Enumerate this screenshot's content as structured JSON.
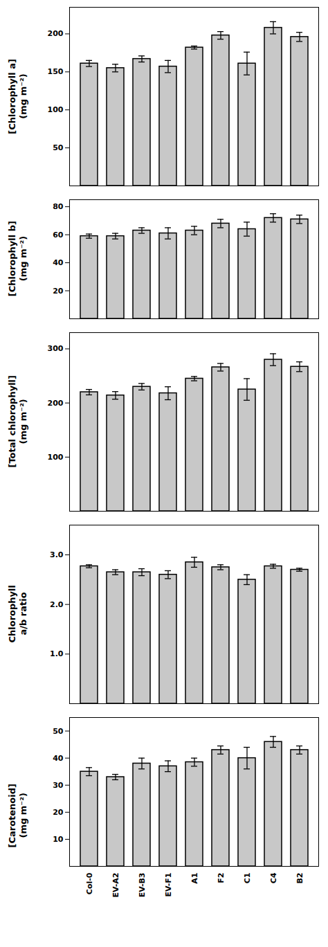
{
  "chart_data": [
    {
      "type": "bar",
      "categories": [
        "Col-0",
        "EV-A2",
        "EV-B3",
        "EV-F1",
        "A1",
        "F2",
        "C1",
        "C4",
        "B2"
      ],
      "values": [
        161,
        155,
        167,
        157,
        182,
        198,
        161,
        208,
        196
      ],
      "errors": [
        4,
        5,
        4,
        8,
        2,
        5,
        15,
        8,
        6
      ],
      "ylabel": "[Chlorophyll a]\n(mg m⁻²)",
      "ylim": [
        0,
        235
      ],
      "yticks": [
        50,
        100,
        150,
        200
      ],
      "color": "#c8c8c8",
      "grid": false,
      "tick_labels": "y"
    },
    {
      "type": "bar",
      "categories": [
        "Col-0",
        "EV-A2",
        "EV-B3",
        "EV-F1",
        "A1",
        "F2",
        "C1",
        "C4",
        "B2"
      ],
      "values": [
        59,
        59,
        63,
        61,
        63,
        68,
        64,
        72,
        71
      ],
      "errors": [
        1.5,
        2,
        2,
        4,
        3,
        3,
        5,
        3,
        3
      ],
      "ylabel": "[Chlorophyll b]\n(mg m⁻²)",
      "ylim": [
        0,
        85
      ],
      "yticks": [
        20,
        40,
        60,
        80
      ],
      "color": "#c8c8c8",
      "grid": false,
      "tick_labels": "y"
    },
    {
      "type": "bar",
      "categories": [
        "Col-0",
        "EV-A2",
        "EV-B3",
        "EV-F1",
        "A1",
        "F2",
        "C1",
        "C4",
        "B2"
      ],
      "values": [
        220,
        214,
        230,
        218,
        245,
        266,
        225,
        280,
        267
      ],
      "errors": [
        5,
        7,
        6,
        12,
        4,
        7,
        20,
        11,
        9
      ],
      "ylabel": "[Total chlorophyll]\n(mg m⁻²)",
      "ylim": [
        0,
        330
      ],
      "yticks": [
        100,
        200,
        300
      ],
      "color": "#c8c8c8",
      "grid": false,
      "tick_labels": "y"
    },
    {
      "type": "bar",
      "categories": [
        "Col-0",
        "EV-A2",
        "EV-B3",
        "EV-F1",
        "A1",
        "F2",
        "C1",
        "C4",
        "B2"
      ],
      "values": [
        2.77,
        2.65,
        2.65,
        2.6,
        2.85,
        2.75,
        2.5,
        2.77,
        2.7
      ],
      "errors": [
        0.03,
        0.05,
        0.07,
        0.08,
        0.1,
        0.05,
        0.1,
        0.04,
        0.03
      ],
      "ylabel": "Chlorophyll\na/b ratio",
      "ylim": [
        0,
        3.6
      ],
      "yticks": [
        1,
        2,
        3
      ],
      "color": "#c8c8c8",
      "grid": false,
      "tick_labels": "y"
    },
    {
      "type": "bar",
      "categories": [
        "Col-0",
        "EV-A2",
        "EV-B3",
        "EV-F1",
        "A1",
        "F2",
        "C1",
        "C4",
        "B2"
      ],
      "values": [
        35,
        33,
        38,
        37,
        38.5,
        43,
        40,
        46,
        43
      ],
      "errors": [
        1.5,
        1,
        2,
        2,
        1.5,
        1.5,
        4,
        2,
        1.5
      ],
      "ylabel": "[Carotenoid]\n(mg m⁻²)",
      "ylim": [
        0,
        55
      ],
      "yticks": [
        10,
        20,
        30,
        40,
        50
      ],
      "color": "#c8c8c8",
      "grid": false
    }
  ]
}
